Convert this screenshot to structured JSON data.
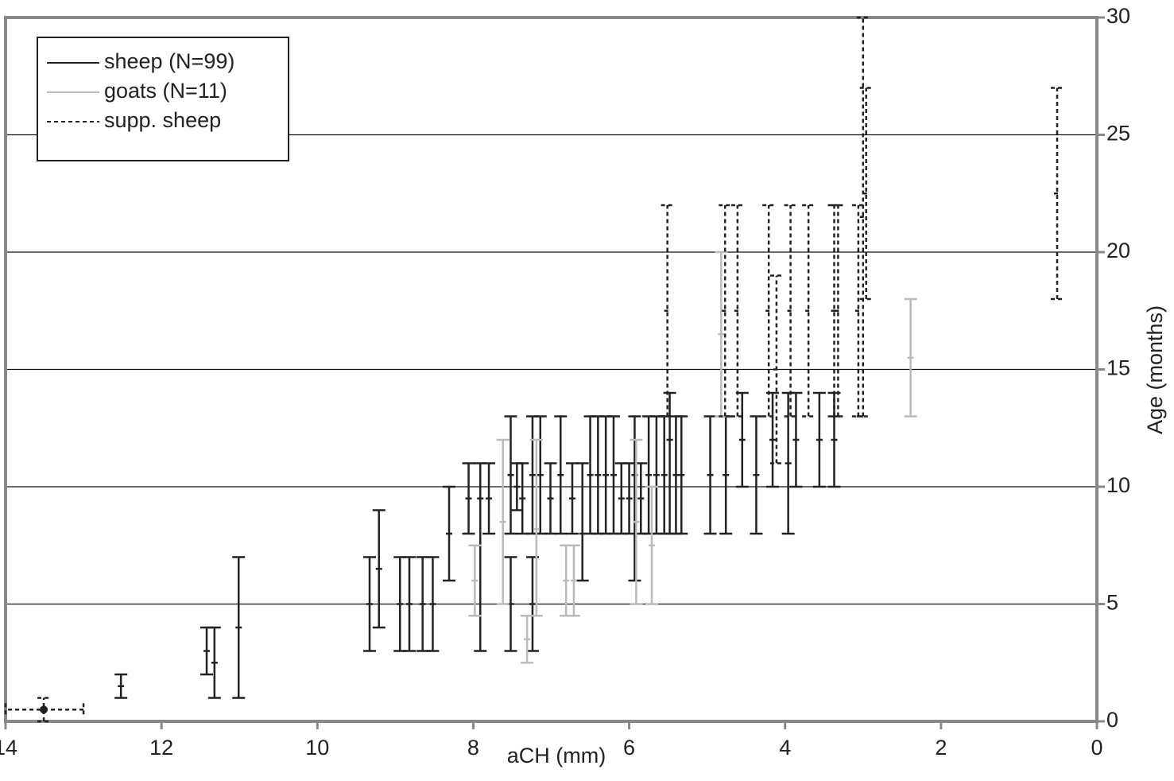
{
  "chart_data": {
    "type": "errorbar",
    "x_label": "aCH (mm)",
    "y_label": "Age (months)",
    "xlim": [
      14,
      0
    ],
    "xticks": [
      14,
      12,
      10,
      8,
      6,
      4,
      2,
      0
    ],
    "ylim": [
      0,
      30
    ],
    "yticks": [
      0,
      5,
      10,
      15,
      20,
      25,
      30
    ],
    "grid": true,
    "legend": "upper-left",
    "series": [
      {
        "name": "sheep (N=99)",
        "color": "#222222",
        "dash": "solid",
        "x": [
          12.52,
          11.42,
          11.32,
          11.01,
          9.33,
          9.21,
          8.94,
          8.82,
          8.65,
          8.52,
          8.31,
          8.06,
          7.91,
          7.8,
          7.52,
          7.52,
          7.44,
          7.37,
          7.24,
          7.24,
          7.14,
          7.01,
          6.88,
          6.73,
          6.6,
          6.5,
          6.4,
          6.3,
          6.2,
          6.1,
          6.0,
          5.93,
          5.85,
          5.75,
          5.65,
          5.55,
          5.48,
          5.4,
          5.33,
          4.96,
          4.76,
          4.55,
          4.37,
          4.16,
          3.96,
          3.86,
          3.56,
          3.37
        ],
        "values": [
          1.5,
          3,
          2.5,
          4,
          5,
          6.5,
          5,
          5,
          5,
          5,
          8,
          9.5,
          9.5,
          9.5,
          5,
          10.5,
          10,
          9.5,
          5,
          10.5,
          10.5,
          9.5,
          10.5,
          9.5,
          8,
          10.5,
          10.5,
          10.5,
          10.5,
          9.5,
          9.5,
          10.5,
          9.5,
          10.5,
          10.5,
          10.5,
          12,
          10.5,
          10.5,
          10.5,
          10.5,
          12,
          10.5,
          12,
          11,
          12,
          12,
          12
        ],
        "low": [
          1,
          2,
          1,
          1,
          3,
          4,
          3,
          3,
          3,
          3,
          6,
          8,
          3,
          8,
          3,
          8,
          9,
          8,
          3,
          8,
          8,
          8,
          8,
          8,
          6,
          8,
          8,
          8,
          8,
          8,
          8,
          6,
          8,
          8,
          8,
          8,
          8,
          8,
          8,
          8,
          8,
          10,
          8,
          10,
          8,
          10,
          10,
          10
        ],
        "high": [
          2,
          4,
          4,
          7,
          7,
          9,
          7,
          7,
          7,
          7,
          10,
          11,
          11,
          11,
          7,
          13,
          11,
          11,
          7,
          13,
          13,
          11,
          13,
          11,
          11,
          13,
          13,
          13,
          13,
          11,
          11,
          13,
          11,
          13,
          13,
          13,
          14,
          13,
          13,
          13,
          13,
          14,
          13,
          14,
          14,
          14,
          14,
          14
        ]
      },
      {
        "name": "goats (N=11)",
        "color": "#bbbbbb",
        "dash": "solid",
        "x": [
          7.98,
          7.62,
          7.31,
          7.19,
          6.81,
          6.71,
          5.91,
          5.71,
          4.82,
          2.39
        ],
        "values": [
          6,
          8.5,
          3.5,
          8.2,
          6,
          6,
          8.5,
          7.5,
          16.5,
          15.5
        ],
        "low": [
          4.5,
          5,
          2.5,
          4.5,
          4.5,
          4.5,
          5,
          5,
          13,
          13
        ],
        "high": [
          7.5,
          12,
          4.5,
          12,
          7.5,
          7.5,
          12,
          10,
          20,
          18
        ]
      },
      {
        "name": "supp. sheep",
        "color": "#222222",
        "dash": "dashed",
        "x": [
          13.51,
          5.51,
          4.77,
          4.61,
          4.21,
          4.11,
          3.93,
          3.7,
          3.37,
          3.32,
          3.06,
          3.0,
          2.96,
          0.51
        ],
        "values": [
          0.5,
          17.5,
          17.5,
          17.5,
          17.5,
          15,
          17.5,
          17.5,
          17.5,
          17.5,
          17.5,
          21.5,
          22.5,
          22.5
        ],
        "low": [
          0,
          13,
          13,
          13,
          13,
          11,
          13,
          13,
          13,
          13,
          13,
          13,
          18,
          18
        ],
        "high": [
          1,
          22,
          22,
          22,
          22,
          19,
          22,
          22,
          22,
          22,
          22,
          30,
          27,
          27
        ],
        "x_low": [
          13,
          null,
          null,
          null,
          null,
          null,
          null,
          null,
          null,
          null,
          null,
          null,
          null,
          null
        ],
        "x_high": [
          14,
          null,
          null,
          null,
          null,
          null,
          null,
          null,
          null,
          null,
          null,
          null,
          null,
          null
        ]
      }
    ]
  }
}
